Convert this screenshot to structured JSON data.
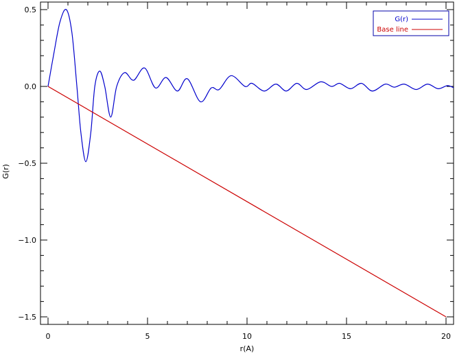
{
  "chart_data": {
    "type": "line",
    "title": "",
    "xlabel": "r(A)",
    "ylabel": "G(r)",
    "xlim": [
      -0.4,
      20.4
    ],
    "ylim": [
      -1.6,
      0.54
    ],
    "xticks": [
      0,
      5,
      10,
      15,
      20
    ],
    "xtick_labels": [
      "0",
      "5",
      "10",
      "15",
      "20"
    ],
    "yticks": [
      0.5,
      0.0,
      -0.5,
      -1.0,
      -1.5
    ],
    "ytick_labels": [
      "0.5",
      "0.0",
      "−0.5",
      "−1.0",
      "−1.5"
    ],
    "grid": false,
    "legend_placement": "top-right",
    "series": [
      {
        "name": "G(r)",
        "color": "#0000cc",
        "points": [
          [
            0,
            0
          ],
          [
            0.3,
            0.22
          ],
          [
            0.6,
            0.42
          ],
          [
            0.92,
            0.5
          ],
          [
            1.2,
            0.35
          ],
          [
            1.45,
            0
          ],
          [
            1.65,
            -0.3
          ],
          [
            1.9,
            -0.49
          ],
          [
            2.15,
            -0.3
          ],
          [
            2.35,
            0
          ],
          [
            2.6,
            0.1
          ],
          [
            2.85,
            0
          ],
          [
            3.15,
            -0.2
          ],
          [
            3.45,
            0
          ],
          [
            3.85,
            0.09
          ],
          [
            4.3,
            0.04
          ],
          [
            4.85,
            0.12
          ],
          [
            5.4,
            -0.01
          ],
          [
            5.93,
            0.058
          ],
          [
            6.5,
            -0.03
          ],
          [
            7.0,
            0.05
          ],
          [
            7.66,
            -0.1
          ],
          [
            8.2,
            -0.01
          ],
          [
            8.6,
            -0.02
          ],
          [
            9.2,
            0.07
          ],
          [
            9.9,
            0.0
          ],
          [
            10.25,
            0.02
          ],
          [
            10.86,
            -0.03
          ],
          [
            11.45,
            0.015
          ],
          [
            11.97,
            -0.03
          ],
          [
            12.5,
            0.02
          ],
          [
            13.0,
            -0.02
          ],
          [
            13.7,
            0.03
          ],
          [
            14.25,
            0.0
          ],
          [
            14.65,
            0.02
          ],
          [
            15.2,
            -0.015
          ],
          [
            15.75,
            0.02
          ],
          [
            16.3,
            -0.03
          ],
          [
            16.95,
            0.015
          ],
          [
            17.4,
            -0.005
          ],
          [
            17.9,
            0.015
          ],
          [
            18.5,
            -0.02
          ],
          [
            19.07,
            0.015
          ],
          [
            19.6,
            -0.015
          ],
          [
            20.07,
            0.005
          ],
          [
            20.4,
            -0.01
          ]
        ]
      },
      {
        "name": "Base line",
        "color": "#cc0000",
        "points": [
          [
            0,
            0
          ],
          [
            20,
            -1.5
          ]
        ]
      }
    ]
  }
}
